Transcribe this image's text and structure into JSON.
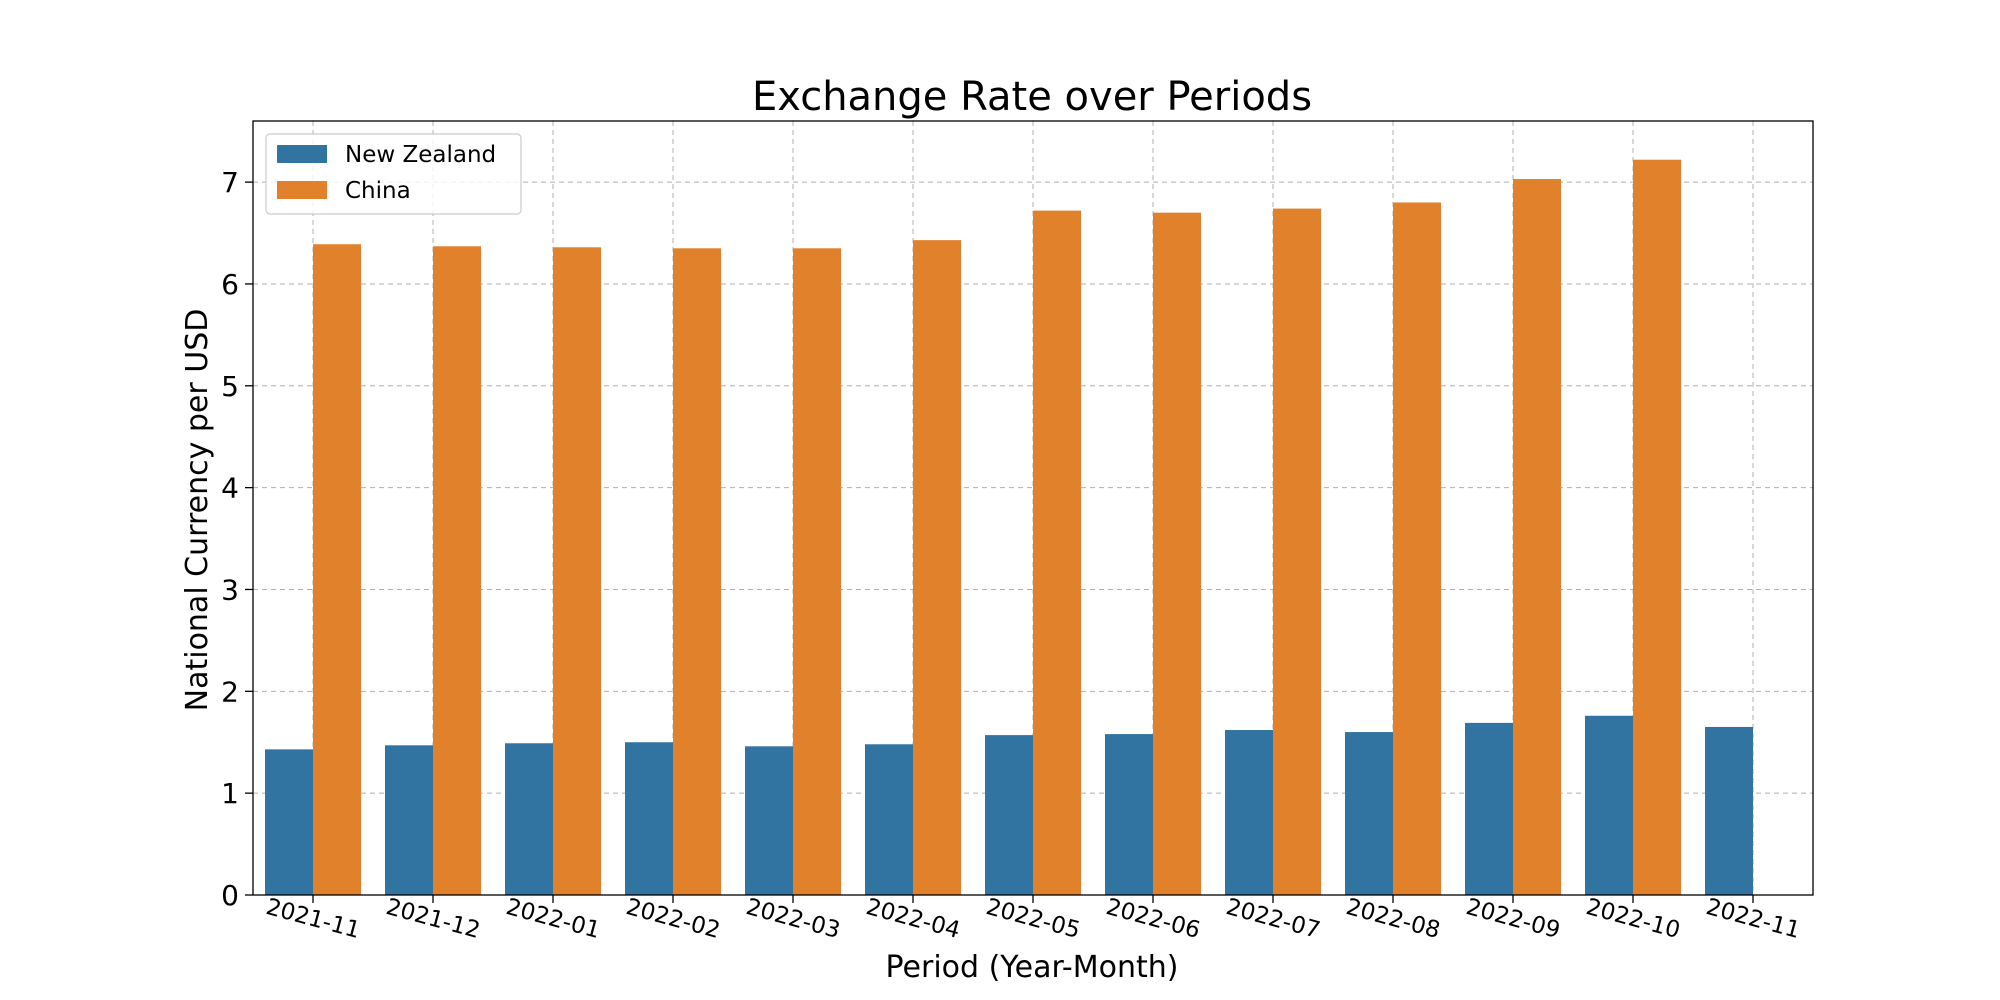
{
  "chart_data": {
    "type": "bar",
    "title": "Exchange Rate over Periods",
    "xlabel": "Period (Year-Month)",
    "ylabel": "National Currency per USD",
    "ylim": [
      0,
      7.6
    ],
    "yticks": [
      "0",
      "1",
      "2",
      "3",
      "4",
      "5",
      "6",
      "7"
    ],
    "grid": true,
    "legend_position": "upper-left",
    "categories": [
      "2021-11",
      "2021-12",
      "2022-01",
      "2022-02",
      "2022-03",
      "2022-04",
      "2022-05",
      "2022-06",
      "2022-07",
      "2022-08",
      "2022-09",
      "2022-10",
      "2022-11"
    ],
    "series": [
      {
        "name": "New Zealand",
        "color": "#3274a1",
        "values": [
          1.43,
          1.47,
          1.49,
          1.5,
          1.46,
          1.48,
          1.57,
          1.58,
          1.62,
          1.6,
          1.69,
          1.76,
          1.65
        ]
      },
      {
        "name": "China",
        "color": "#e1812c",
        "values": [
          6.39,
          6.37,
          6.36,
          6.35,
          6.35,
          6.43,
          6.72,
          6.7,
          6.74,
          6.8,
          7.03,
          7.22,
          null
        ]
      }
    ]
  }
}
